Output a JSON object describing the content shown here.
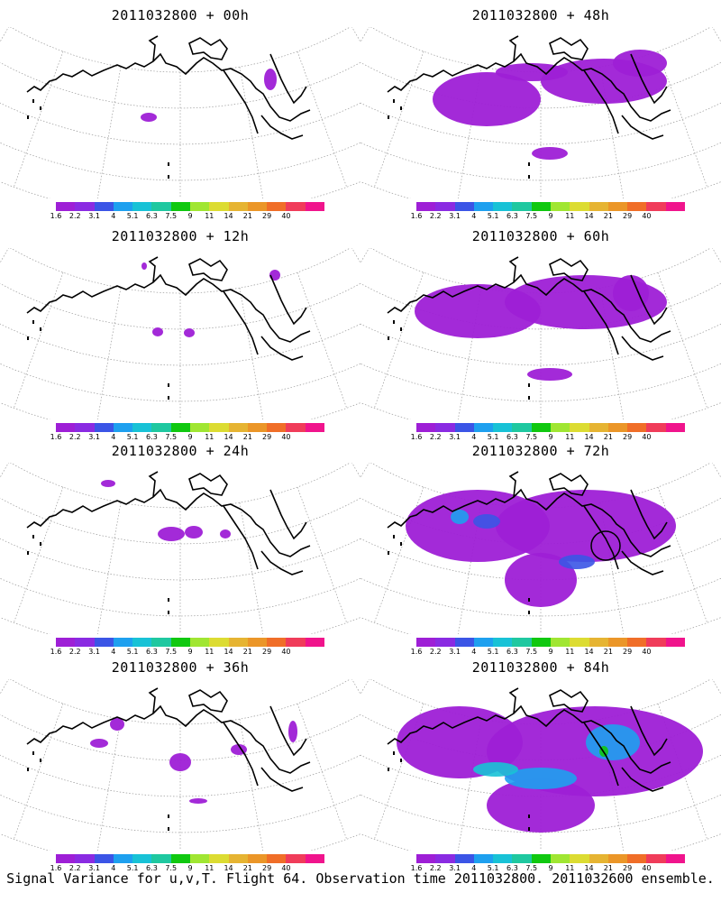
{
  "caption": "Signal Variance for u,v,T. Flight 64. Observation time 2011032800. 2011032600 ensemble.",
  "colorbar": {
    "colors": [
      "#9e1fd6",
      "#8a2be2",
      "#3b55e6",
      "#1ea0ef",
      "#18c2d6",
      "#1fc8a0",
      "#10c810",
      "#a0e632",
      "#dcdc32",
      "#e6b432",
      "#eb9628",
      "#f06e28",
      "#f03c5a",
      "#f0148c"
    ],
    "labels": [
      "1.6",
      "2.2",
      "3.1",
      "4",
      "5.1",
      "6.3",
      "7.5",
      "9",
      "11",
      "14",
      "21",
      "29",
      "40"
    ]
  },
  "panels": [
    {
      "title": "2011032800 + 00h",
      "intensity": 0
    },
    {
      "title": "2011032800 + 12h",
      "intensity": 1
    },
    {
      "title": "2011032800 + 24h",
      "intensity": 2
    },
    {
      "title": "2011032800 + 36h",
      "intensity": 3
    },
    {
      "title": "2011032800 + 48h",
      "intensity": 4
    },
    {
      "title": "2011032800 + 60h",
      "intensity": 5
    },
    {
      "title": "2011032800 + 72h",
      "intensity": 6
    },
    {
      "title": "2011032800 + 84h",
      "intensity": 7
    }
  ]
}
